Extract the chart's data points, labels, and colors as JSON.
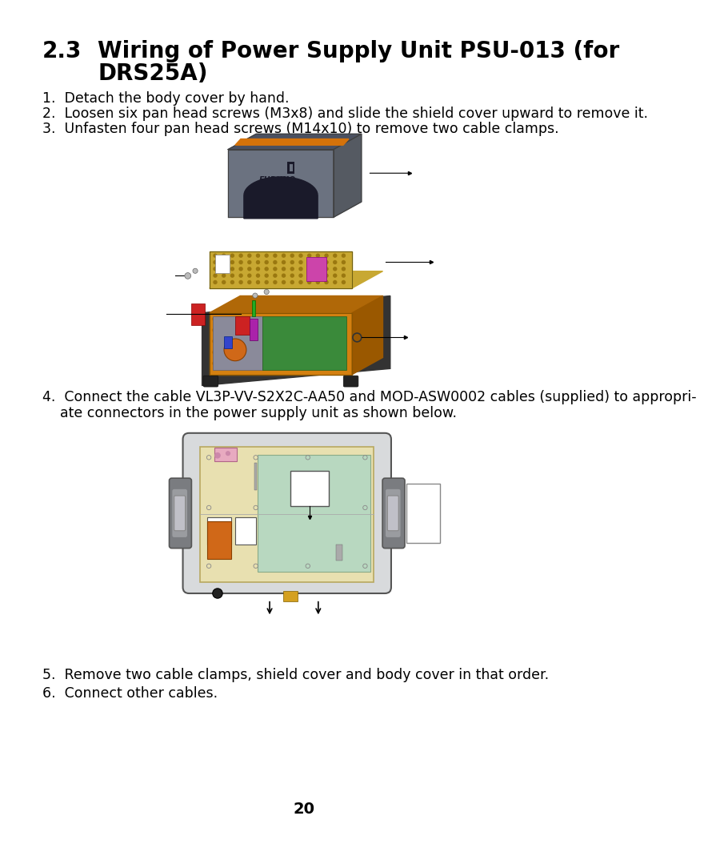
{
  "bg_color": "#ffffff",
  "text_color": "#000000",
  "title_number": "2.3",
  "title_line1": "Wiring of Power Supply Unit PSU-013 (for",
  "title_line2": "DRS25A)",
  "item1": "1.  Detach the body cover by hand.",
  "item2": "2.  Loosen six pan head screws (M3x8) and slide the shield cover upward to remove it.",
  "item3": "3.  Unfasten four pan head screws (M14x10) to remove two cable clamps.",
  "item4a": "4.  Connect the cable VL3P-VV-S2X2C-AA50 and MOD-ASW0002 cables (supplied) to appropri-",
  "item4b": "    ate connectors in the power supply unit as shown below.",
  "item5": "5.  Remove two cable clamps, shield cover and body cover in that order.",
  "item6": "6.  Connect other cables.",
  "page_number": "20",
  "cover_color": "#6b7280",
  "cover_dark": "#4a5060",
  "orange_stripe": "#d4720a",
  "shield_color": "#c8a832",
  "shield_dark": "#9a7a10",
  "body_orange": "#d48010",
  "body_dark": "#333333",
  "green_pcb": "#3a8a3a",
  "gray_section": "#8a8a9a",
  "pink_comp": "#cc44aa",
  "red_comp": "#cc2222",
  "blue_comp": "#3344cc",
  "housing_gray": "#666870",
  "housing_light": "#d8dadc",
  "pcb_beige": "#e8e0b0",
  "pcb_green": "#b8d8c0",
  "orange_coil": "#d06818"
}
